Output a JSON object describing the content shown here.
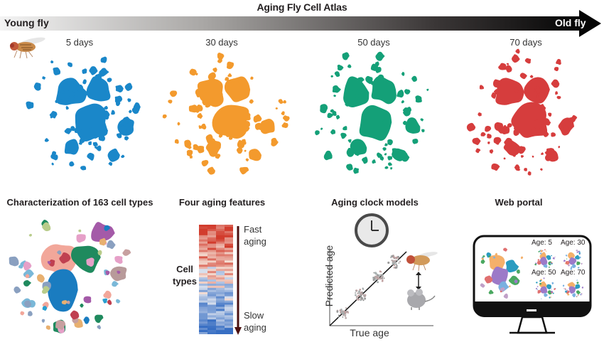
{
  "header": {
    "title": "Aging Fly Cell Atlas",
    "start_label": "Young fly",
    "end_label": "Old fly"
  },
  "timepoints": [
    {
      "label": "5 days",
      "color": "#1a87c9"
    },
    {
      "label": "30 days",
      "color": "#f39a2d"
    },
    {
      "label": "50 days",
      "color": "#14a078"
    },
    {
      "label": "70 days",
      "color": "#d63d3d"
    }
  ],
  "panels": {
    "cell_types": {
      "title": "Characterization of 163 cell types"
    },
    "aging_features": {
      "title": "Four aging features",
      "row_label": "Cell types",
      "top_label": "Fast aging",
      "bottom_label": "Slow aging"
    },
    "clock": {
      "title": "Aging clock models",
      "y_label": "Predicted age",
      "x_label": "True age"
    },
    "portal": {
      "title": "Web portal",
      "ages": [
        "Age: 5",
        "Age: 30",
        "Age: 50",
        "Age: 70"
      ]
    }
  }
}
